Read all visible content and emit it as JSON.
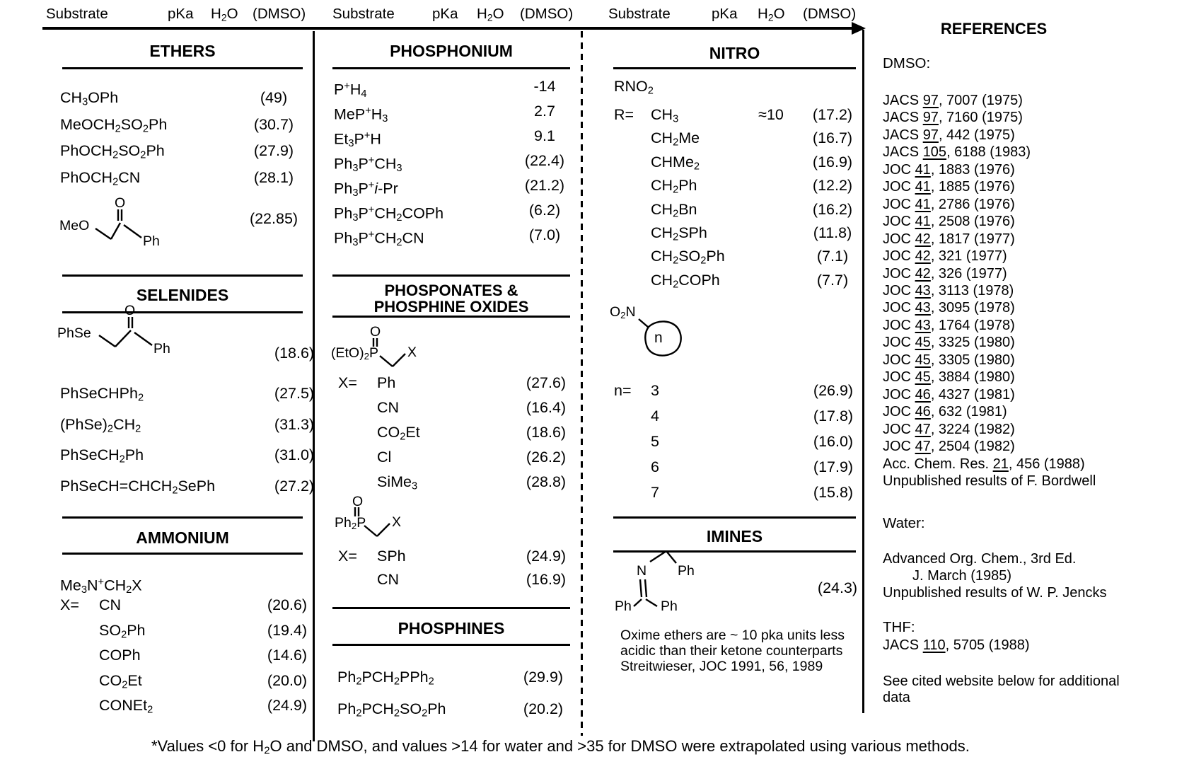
{
  "headers": {
    "substrate": "Substrate",
    "pka": "pKa",
    "h2o": "H~2~O",
    "dmso": "(DMSO)"
  },
  "sections": {
    "ethers": {
      "title": "ETHERS",
      "rows": [
        {
          "f": "CH~3~OPh",
          "v": "(49)"
        },
        {
          "f": "MeOCH~2~SO~2~Ph",
          "v": "(30.7)"
        },
        {
          "f": "PhOCH~2~SO~2~Ph",
          "v": "(27.9)"
        },
        {
          "f": "PhOCH~2~CN",
          "v": "(28.1)"
        }
      ],
      "struct_labels": {
        "left": "MeO",
        "o": "O",
        "right": "Ph"
      },
      "struct_value": "(22.85)"
    },
    "selenides": {
      "title": "SELENIDES",
      "struct_labels": {
        "left": "PhSe",
        "o": "O",
        "right": "Ph"
      },
      "struct_value": "(18.6)",
      "rows": [
        {
          "f": "PhSeCHPh~2~",
          "v": "(27.5)"
        },
        {
          "f": "(PhSe)~2~CH~2~",
          "v": "(31.3)"
        },
        {
          "f": "PhSeCH~2~Ph",
          "v": "(31.0)"
        },
        {
          "f": "PhSeCH=CHCH~2~SePh",
          "v": "(27.2)"
        }
      ]
    },
    "ammonium": {
      "title": "AMMONIUM",
      "lead": "Me~3~N^+^CH~2~X",
      "rows": [
        {
          "pre": "X=",
          "f": "CN",
          "v": "(20.6)"
        },
        {
          "f": "SO~2~Ph",
          "v": "(19.4)"
        },
        {
          "f": "COPh",
          "v": "(14.6)"
        },
        {
          "f": "CO~2~Et",
          "v": "(20.0)"
        },
        {
          "f": "CONEt~2~",
          "v": "(24.9)"
        }
      ]
    },
    "phosphonium": {
      "title": "PHOSPHONIUM",
      "rows": [
        {
          "f": "P^+^H~4~",
          "w": "-14"
        },
        {
          "f": "MeP^+^H~3~",
          "w": "2.7"
        },
        {
          "f": "Et~3~P^+^H",
          "w": "9.1"
        },
        {
          "f": "Ph~3~P^+^CH~3~",
          "v": "(22.4)"
        },
        {
          "f": "Ph~3~P^+^*i*-Pr",
          "v": "(21.2)"
        },
        {
          "f": "Ph~3~P^+^CH~2~COPh",
          "v": "(6.2)"
        },
        {
          "f": "Ph~3~P^+^CH~2~CN",
          "v": "(7.0)"
        }
      ]
    },
    "phosphonates": {
      "title_line1": "PHOSPONATES &",
      "title_line2": "PHOSPHINE OXIDES",
      "struct1_label": "(EtO)~2~P",
      "struct1_o": "O",
      "struct1_x": "X",
      "rows1": [
        {
          "pre": "X=",
          "f": "Ph",
          "v": "(27.6)"
        },
        {
          "f": "CN",
          "v": "(16.4)"
        },
        {
          "f": "CO~2~Et",
          "v": "(18.6)"
        },
        {
          "f": "Cl",
          "v": "(26.2)"
        },
        {
          "f": "SiMe~3~",
          "v": "(28.8)"
        }
      ],
      "struct2_label": "Ph~2~P",
      "struct2_o": "O",
      "struct2_x": "X",
      "rows2": [
        {
          "pre": "X=",
          "f": "SPh",
          "v": "(24.9)"
        },
        {
          "f": "CN",
          "v": "(16.9)"
        }
      ]
    },
    "phosphines": {
      "title": "PHOSPHINES",
      "rows": [
        {
          "f": "Ph~2~PCH~2~PPh~2~",
          "v": "(29.9)"
        },
        {
          "f": "Ph~2~PCH~2~SO~2~Ph",
          "v": "(20.2)"
        }
      ]
    },
    "nitro": {
      "title": "NITRO",
      "lead": "RNO~2~",
      "rows": [
        {
          "pre": "R=",
          "f": "CH~3~",
          "w": "≈10",
          "v": "(17.2)"
        },
        {
          "f": "CH~2~Me",
          "v": "(16.7)"
        },
        {
          "f": "CHMe~2~",
          "v": "(16.9)"
        },
        {
          "f": "CH~2~Ph",
          "v": "(12.2)"
        },
        {
          "f": "CH~2~Bn",
          "v": "(16.2)"
        },
        {
          "f": "CH~2~SPh",
          "v": "(11.8)"
        },
        {
          "f": "CH~2~SO~2~Ph",
          "v": "(7.1)"
        },
        {
          "f": "CH~2~COPh",
          "v": "(7.7)"
        }
      ],
      "ring_label": "O~2~N",
      "ring_n": "n",
      "nrows": [
        {
          "pre": "n=",
          "f": "3",
          "v": "(26.9)"
        },
        {
          "f": "4",
          "v": "(17.8)"
        },
        {
          "f": "5",
          "v": "(16.0)"
        },
        {
          "f": "6",
          "v": "(17.9)"
        },
        {
          "f": "7",
          "v": "(15.8)"
        }
      ]
    },
    "imines": {
      "title": "IMINES",
      "labels": {
        "n": "N",
        "ph_top": "Ph",
        "ph_left": "Ph",
        "ph_right": "Ph"
      },
      "struct_value": "(24.3)",
      "note_lines": [
        "Oxime ethers are ~ 10 pka units less",
        "acidic than their ketone counterparts",
        "Streitwieser, JOC 1991, 56, 1989"
      ]
    }
  },
  "references": {
    "title": "REFERENCES",
    "dmso_label": "DMSO:",
    "dmso_refs": [
      "JACS _97_, 7007 (1975)",
      "JACS _97_, 7160 (1975)",
      "JACS _97_, 442 (1975)",
      "JACS _105_, 6188 (1983)",
      "JOC _41_, 1883 (1976)",
      "JOC _41_, 1885 (1976)",
      "JOC _41_, 2786 (1976)",
      "JOC _41_, 2508 (1976)",
      "JOC _42_, 1817 (1977)",
      "JOC _42_, 321 (1977)",
      "JOC _42_, 326 (1977)",
      "JOC _43_, 3113 (1978)",
      "JOC _43_, 3095 (1978)",
      "JOC _43_, 1764 (1978)",
      "JOC _45_, 3325 (1980)",
      "JOC _45_, 3305 (1980)",
      "JOC _45_, 3884 (1980)",
      "JOC _46_, 4327 (1981)",
      "JOC _46_, 632 (1981)",
      "JOC _47_, 3224 (1982)",
      "JOC _47_, 2504 (1982)",
      "Acc. Chem. Res. _21_, 456 (1988)",
      "Unpublished results of F. Bordwell"
    ],
    "water_label": "Water:",
    "water_refs": [
      {
        "t": "Advanced Org. Chem., 3rd Ed."
      },
      {
        "t": "J. March (1985)",
        "indent": 42
      },
      {
        "t": "Unpublished results of W. P. Jencks"
      }
    ],
    "thf_label": "THF:",
    "thf_refs": [
      "JACS _110_, 5705 (1988)"
    ],
    "note_lines": [
      "See cited website below for additional",
      "data"
    ]
  },
  "footnote": "*Values <0 for H~2~O and DMSO, and values >14 for water and >35 for DMSO were extrapolated using various methods."
}
